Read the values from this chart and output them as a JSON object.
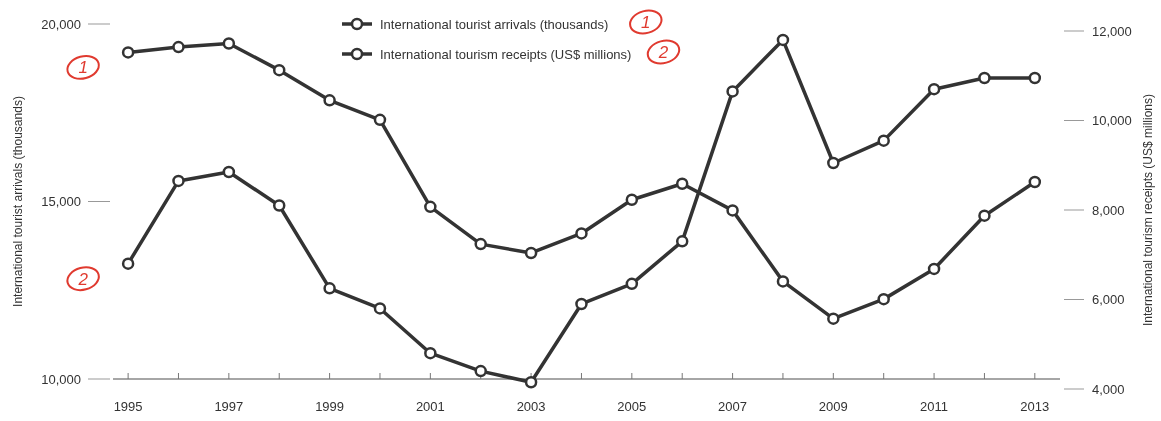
{
  "chart_data": {
    "type": "line",
    "xlabel": null,
    "ylabel": "International tourist arrivals (thousands)",
    "y2label": "International tourism receipts (US$ millions)",
    "x": [
      1995,
      1996,
      1997,
      1998,
      1999,
      2000,
      2001,
      2002,
      2003,
      2004,
      2005,
      2006,
      2007,
      2008,
      2009,
      2010,
      2011,
      2012,
      2013
    ],
    "xlim": [
      1994.7,
      2013.5
    ],
    "xticks": [
      {
        "value": 1995,
        "label": "1995"
      },
      {
        "value": 1996,
        "label": null
      },
      {
        "value": 1997,
        "label": "1997"
      },
      {
        "value": 1998,
        "label": null
      },
      {
        "value": 1999,
        "label": "1999"
      },
      {
        "value": 2000,
        "label": null
      },
      {
        "value": 2001,
        "label": "2001"
      },
      {
        "value": 2002,
        "label": null
      },
      {
        "value": 2003,
        "label": "2003"
      },
      {
        "value": 2004,
        "label": null
      },
      {
        "value": 2005,
        "label": "2005"
      },
      {
        "value": 2006,
        "label": null
      },
      {
        "value": 2007,
        "label": "2007"
      },
      {
        "value": 2008,
        "label": null
      },
      {
        "value": 2009,
        "label": "2009"
      },
      {
        "value": 2010,
        "label": null
      },
      {
        "value": 2011,
        "label": "2011"
      },
      {
        "value": 2012,
        "label": null
      },
      {
        "value": 2013,
        "label": "2013"
      }
    ],
    "ylim": [
      10000,
      20000
    ],
    "yticks": [
      {
        "value": 10000,
        "label": "10,000"
      },
      {
        "value": 15000,
        "label": "15,000"
      },
      {
        "value": 20000,
        "label": "20,000"
      }
    ],
    "y2lim": [
      4000,
      12000
    ],
    "y2ticks": [
      {
        "value": 4000,
        "label": "4,000"
      },
      {
        "value": 6000,
        "label": "6,000"
      },
      {
        "value": 8000,
        "label": "8,000"
      },
      {
        "value": 10000,
        "label": "10,000"
      },
      {
        "value": 12000,
        "label": "12,000"
      }
    ],
    "series": [
      {
        "name": "International tourist arrivals (thousands)",
        "color": "#333333",
        "values": [
          19200,
          19350,
          19450,
          18700,
          17850,
          17300,
          14850,
          13800,
          13550,
          14100,
          15050,
          15500,
          14750,
          12750,
          11700,
          12250,
          13100,
          14600,
          15550
        ]
      },
      {
        "name": "International tourism receipts (US$ millions)",
        "color": "#333333",
        "axis": "y2",
        "values": [
          6800,
          8650,
          8850,
          8100,
          6250,
          5800,
          4800,
          4400,
          4150,
          5900,
          6350,
          7300,
          10650,
          11800,
          9050,
          9550,
          10700,
          10950,
          10950
        ]
      }
    ],
    "marker": "circle",
    "line_style": "solid",
    "grid": false,
    "legend": "top",
    "annotations": [
      "1",
      "2",
      "1",
      "2"
    ]
  }
}
